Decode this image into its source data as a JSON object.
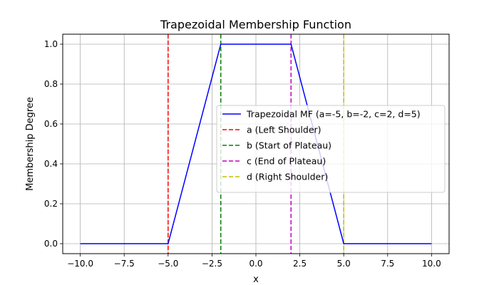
{
  "chart_data": {
    "type": "line",
    "title": "Trapezoidal Membership Function",
    "xlabel": "x",
    "ylabel": "Membership Degree",
    "xlim": [
      -11,
      11
    ],
    "ylim": [
      -0.05,
      1.05
    ],
    "xticks": [
      -10.0,
      -7.5,
      -5.0,
      -2.5,
      0.0,
      2.5,
      5.0,
      7.5,
      10.0
    ],
    "xtick_labels": [
      "−10.0",
      "−7.5",
      "−5.0",
      "−2.5",
      "0.0",
      "2.5",
      "5.0",
      "7.5",
      "10.0"
    ],
    "yticks": [
      0.0,
      0.2,
      0.4,
      0.6,
      0.8,
      1.0
    ],
    "ytick_labels": [
      "0.0",
      "0.2",
      "0.4",
      "0.6",
      "0.8",
      "1.0"
    ],
    "grid": true,
    "legend_position": "center-right",
    "series": [
      {
        "name": "Trapezoidal MF (a=-5, b=-2, c=2, d=5)",
        "color": "#0000ff",
        "style": "solid",
        "x": [
          -10,
          -5,
          -2,
          2,
          5,
          10
        ],
        "y": [
          0,
          0,
          1,
          1,
          0,
          0
        ]
      }
    ],
    "vlines": [
      {
        "name": "a (Left Shoulder)",
        "x": -5,
        "color": "#ff0000",
        "style": "dashed"
      },
      {
        "name": "b (Start of Plateau)",
        "x": -2,
        "color": "#008000",
        "style": "dashed"
      },
      {
        "name": "c (End of Plateau)",
        "x": 2,
        "color": "#bf00bf",
        "style": "dashed"
      },
      {
        "name": "d (Right Shoulder)",
        "x": 5,
        "color": "#bfbf00",
        "style": "dashed"
      }
    ]
  }
}
